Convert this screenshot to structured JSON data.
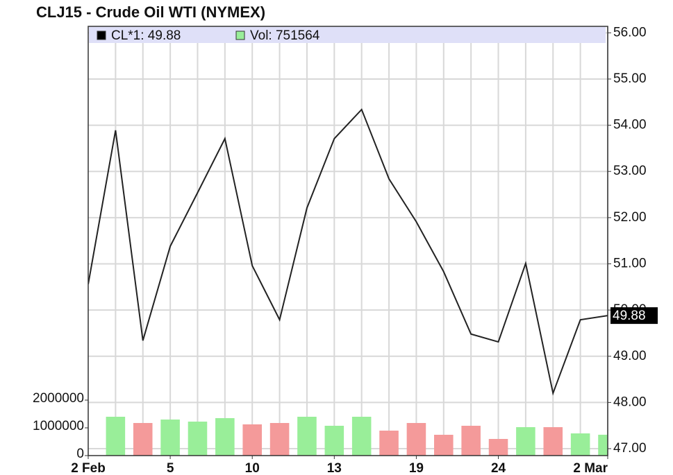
{
  "chart_data": {
    "type": "line",
    "title": "CLJ15 - Crude Oil WTI (NYMEX)",
    "categories": [
      "2 Feb",
      null,
      null,
      "5",
      null,
      null,
      "10",
      null,
      null,
      "13",
      null,
      null,
      "19",
      null,
      null,
      "24",
      null,
      null,
      null,
      "2 Mar"
    ],
    "series": [
      {
        "name": "CL*1: 49.88",
        "type": "line",
        "color": "#222222",
        "values": [
          50.56,
          53.89,
          49.34,
          51.38,
          52.54,
          53.71,
          50.96,
          49.79,
          52.21,
          53.71,
          54.34,
          52.84,
          51.91,
          50.83,
          49.48,
          49.31,
          51.01,
          48.2,
          49.79,
          49.88
        ]
      },
      {
        "name": "Vol: 751564",
        "type": "bar",
        "axis": "y2",
        "color": "#99ee99",
        "values": [
          null,
          1400000,
          1175000,
          1300000,
          1225000,
          1350000,
          1125000,
          1175000,
          1400000,
          1075000,
          1400000,
          900000,
          1175000,
          750000,
          1075000,
          600000,
          1025000,
          1025000,
          800000,
          751564
        ],
        "colors": [
          null,
          "#99ee99",
          "#f49a9a",
          "#99ee99",
          "#99ee99",
          "#99ee99",
          "#f49a9a",
          "#f49a9a",
          "#99ee99",
          "#99ee99",
          "#99ee99",
          "#f49a9a",
          "#f49a9a",
          "#f49a9a",
          "#f49a9a",
          "#f49a9a",
          "#99ee99",
          "#f49a9a",
          "#99ee99",
          "#99ee99"
        ]
      }
    ],
    "ylim": [
      46.85,
      56.14
    ],
    "yticks": [
      {
        "value": 47,
        "label": "47.00"
      },
      {
        "value": 48,
        "label": "48.00"
      },
      {
        "value": 49,
        "label": "49.00"
      },
      {
        "value": 50,
        "label": "50.00"
      },
      {
        "value": 51,
        "label": "51.00"
      },
      {
        "value": 52,
        "label": "52.00"
      },
      {
        "value": 53,
        "label": "53.00"
      },
      {
        "value": 54,
        "label": "54.00"
      },
      {
        "value": 55,
        "label": "55.00"
      },
      {
        "value": 56,
        "label": "56.00"
      }
    ],
    "y2lim": [
      0,
      15475000
    ],
    "y2ticks": [
      0,
      1000000,
      2000000
    ],
    "grid": true
  }
}
